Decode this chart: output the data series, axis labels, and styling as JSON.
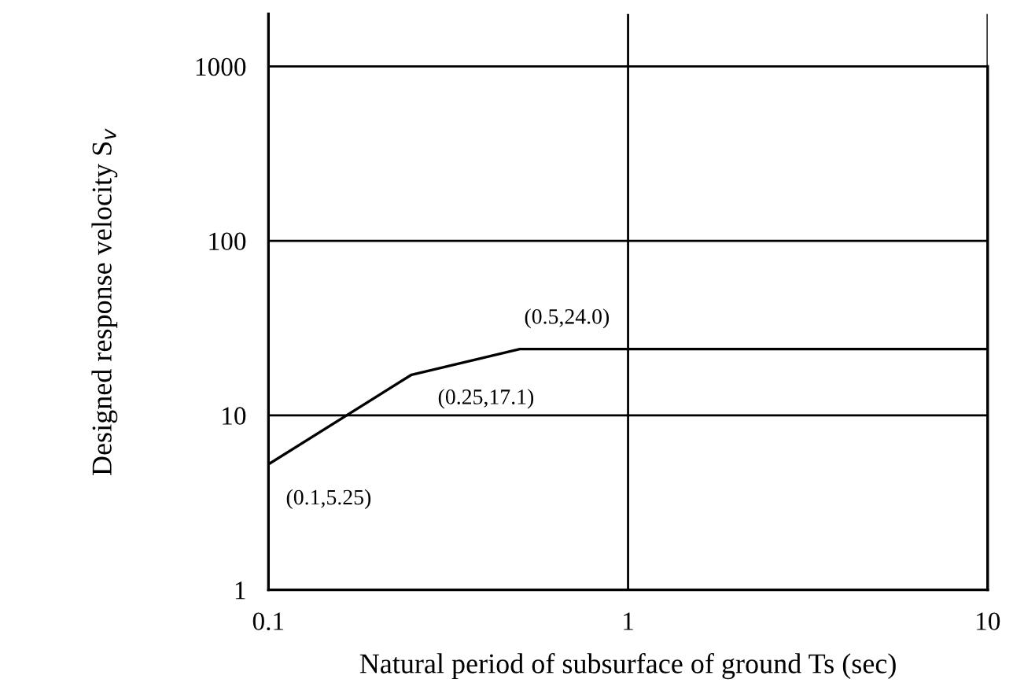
{
  "chart_data": {
    "type": "line",
    "xlabel": "Natural period of subsurface of ground Ts (sec)",
    "ylabel": "Designed response velocity S$_{v}$",
    "x": [
      0.1,
      0.25,
      0.5,
      10
    ],
    "series": [
      {
        "color": "#000000",
        "values": [
          5.25,
          17.1,
          24.0,
          24.0
        ]
      }
    ],
    "log": "xy",
    "xlim": [
      0.1,
      10
    ],
    "ylim": [
      1,
      2000
    ],
    "xticks": [
      0.1,
      1,
      10
    ],
    "yticks": [
      1,
      10,
      100,
      1000
    ],
    "grid": true,
    "marker": "none",
    "line_style": "solid",
    "annotations": [
      {
        "text": "(0.1,5.25)",
        "x": 0.1,
        "y": 5.25
      },
      {
        "text": "(0.25,17.1)",
        "x": 0.25,
        "y": 17.1
      },
      {
        "text": "(0.5,24.0)",
        "x": 0.5,
        "y": 24.0
      }
    ]
  }
}
